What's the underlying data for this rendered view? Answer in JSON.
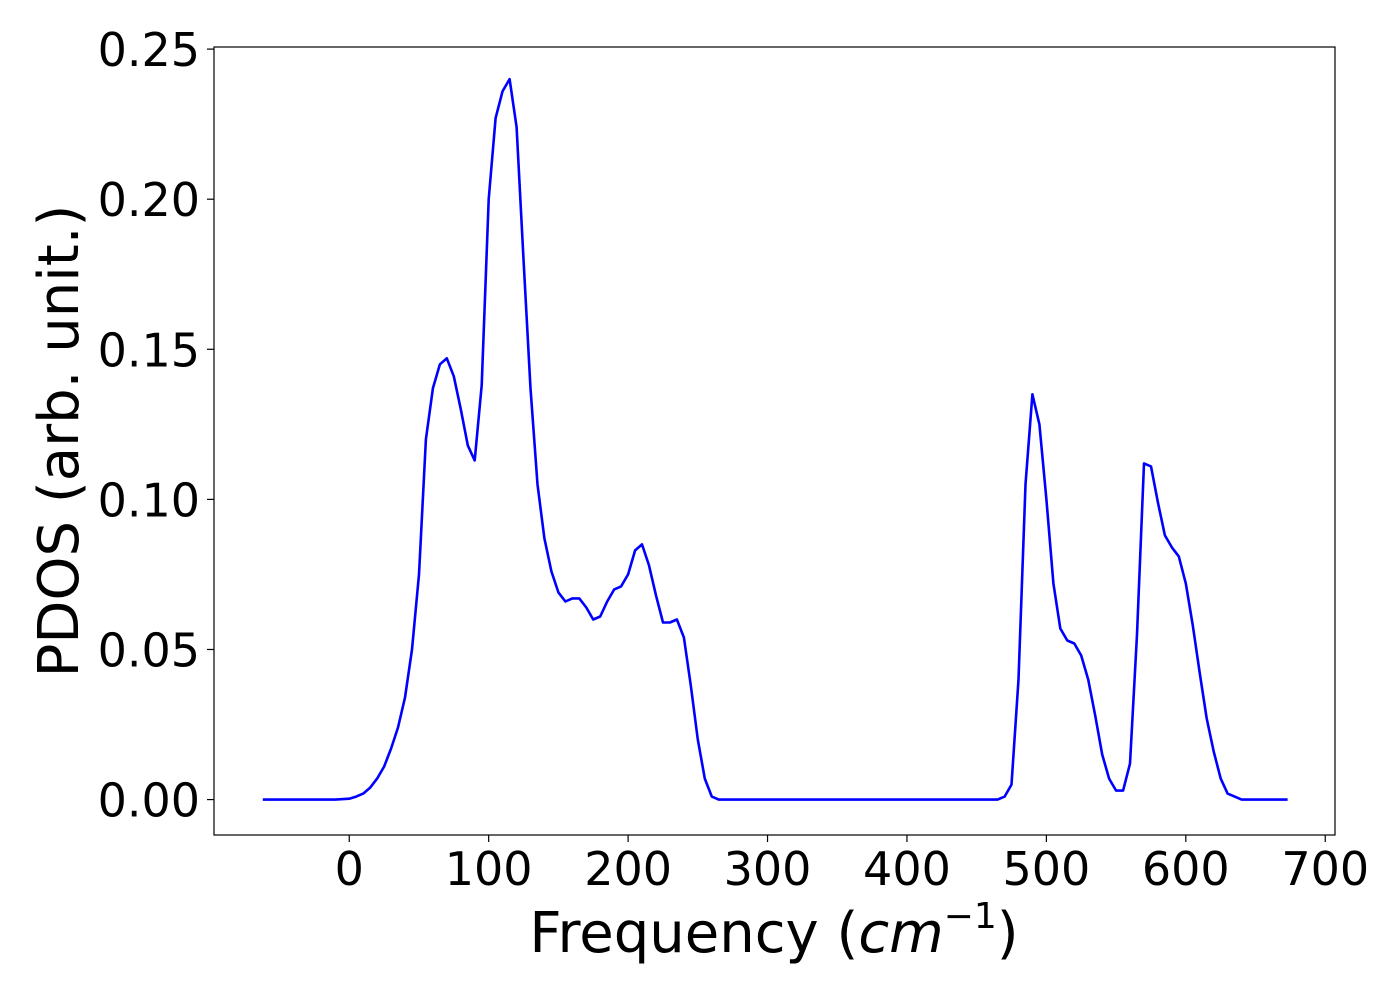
{
  "chart_data": {
    "type": "line",
    "title": "",
    "xlabel_text": "Frequency (",
    "xlabel_math": "cm",
    "xlabel_sup": "−1",
    "xlabel_close": ")",
    "ylabel": "PDOS (arb. unit.)",
    "xlim": [
      -97,
      707
    ],
    "ylim": [
      -0.0118,
      0.2507
    ],
    "xticks": [
      0,
      100,
      200,
      300,
      400,
      500,
      600,
      700
    ],
    "xtick_labels": [
      "0",
      "100",
      "200",
      "300",
      "400",
      "500",
      "600",
      "700"
    ],
    "yticks": [
      0.0,
      0.05,
      0.1,
      0.15,
      0.2,
      0.25
    ],
    "ytick_labels": [
      "0.00",
      "0.05",
      "0.10",
      "0.15",
      "0.20",
      "0.25"
    ],
    "grid": false,
    "line_color": "#0000ff",
    "series": [
      {
        "x": [
          -62,
          -50,
          -40,
          -30,
          -20,
          -10,
          0,
          5,
          10,
          15,
          20,
          25,
          30,
          35,
          40,
          45,
          50,
          55,
          60,
          65,
          70,
          75,
          80,
          85,
          90,
          95,
          100,
          105,
          110,
          115,
          120,
          125,
          130,
          135,
          140,
          145,
          150,
          155,
          160,
          165,
          170,
          175,
          180,
          185,
          190,
          195,
          200,
          205,
          210,
          215,
          220,
          225,
          230,
          235,
          240,
          245,
          250,
          255,
          260,
          265,
          270,
          280,
          300,
          350,
          400,
          450,
          465,
          470,
          475,
          480,
          485,
          490,
          495,
          500,
          505,
          510,
          515,
          520,
          525,
          530,
          535,
          540,
          545,
          550,
          555,
          560,
          565,
          570,
          575,
          580,
          585,
          590,
          595,
          600,
          605,
          610,
          615,
          620,
          625,
          630,
          640,
          660,
          673
        ],
        "y": [
          0.0,
          0.0,
          0.0,
          0.0,
          0.0,
          0.0,
          0.0003,
          0.001,
          0.002,
          0.004,
          0.007,
          0.011,
          0.017,
          0.024,
          0.034,
          0.05,
          0.075,
          0.12,
          0.137,
          0.145,
          0.147,
          0.141,
          0.13,
          0.118,
          0.113,
          0.138,
          0.2,
          0.227,
          0.236,
          0.24,
          0.224,
          0.18,
          0.137,
          0.105,
          0.087,
          0.076,
          0.069,
          0.066,
          0.067,
          0.067,
          0.064,
          0.06,
          0.061,
          0.066,
          0.07,
          0.071,
          0.075,
          0.083,
          0.085,
          0.078,
          0.068,
          0.059,
          0.059,
          0.06,
          0.054,
          0.038,
          0.02,
          0.007,
          0.001,
          0.0,
          0.0,
          0.0,
          0.0,
          0.0,
          0.0,
          0.0,
          0.0,
          0.001,
          0.005,
          0.04,
          0.105,
          0.135,
          0.125,
          0.1,
          0.072,
          0.057,
          0.053,
          0.052,
          0.048,
          0.04,
          0.028,
          0.015,
          0.007,
          0.003,
          0.003,
          0.012,
          0.055,
          0.112,
          0.111,
          0.099,
          0.088,
          0.084,
          0.081,
          0.072,
          0.058,
          0.042,
          0.027,
          0.016,
          0.007,
          0.002,
          0.0,
          0.0,
          0.0
        ]
      }
    ]
  }
}
